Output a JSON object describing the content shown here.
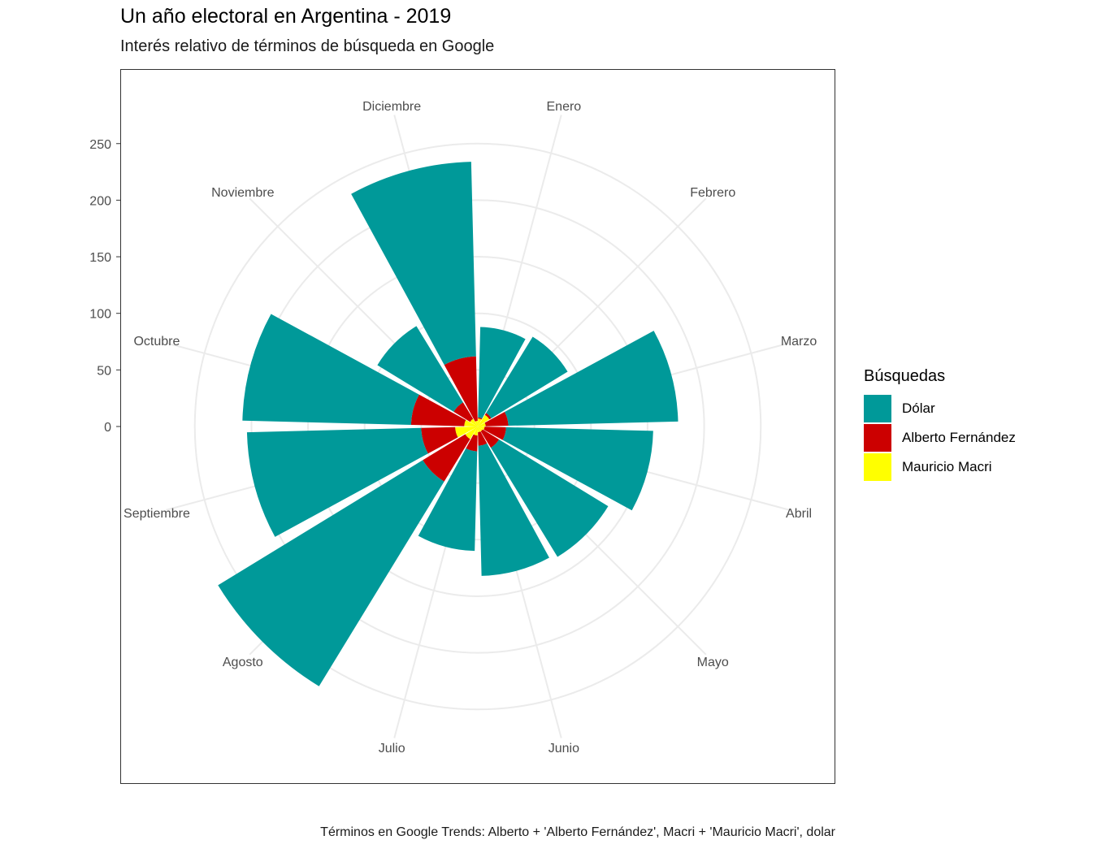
{
  "title": "Un año electoral en Argentina - 2019",
  "subtitle": "Interés relativo de términos de búsqueda en Google",
  "caption": "Términos en Google Trends: Alberto + 'Alberto Fernández', Macri + 'Mauricio Macri', dolar",
  "legend": {
    "title": "Búsquedas",
    "items": [
      {
        "label": "Dólar",
        "color": "#009999"
      },
      {
        "label": "Alberto Fernández",
        "color": "#CC0000"
      },
      {
        "label": "Mauricio Macri",
        "color": "#FFFF00"
      }
    ]
  },
  "chart_data": {
    "type": "bar",
    "coord": "polar",
    "stacked": true,
    "categories": [
      "Enero",
      "Febrero",
      "Marzo",
      "Abril",
      "Mayo",
      "Junio",
      "Julio",
      "Agosto",
      "Septiembre",
      "Octubre",
      "Noviembre",
      "Diciembre"
    ],
    "y_ticks": [
      0,
      50,
      100,
      150,
      200,
      250
    ],
    "ylim": [
      0,
      285
    ],
    "grid": true,
    "legend_position": "right",
    "series": [
      {
        "name": "Mauricio Macri",
        "color": "#FFFF00",
        "values": [
          7,
          12,
          7,
          6,
          5,
          5,
          8,
          13,
          20,
          12,
          8,
          5
        ]
      },
      {
        "name": "Alberto Fernández",
        "color": "#CC0000",
        "values": [
          1,
          2,
          20,
          19,
          17,
          12,
          14,
          44,
          30,
          47,
          17,
          57
        ]
      },
      {
        "name": "Dólar",
        "color": "#009999",
        "values": [
          80,
          79,
          150,
          130,
          113,
          115,
          88,
          212,
          154,
          149,
          79,
          172
        ]
      }
    ]
  }
}
